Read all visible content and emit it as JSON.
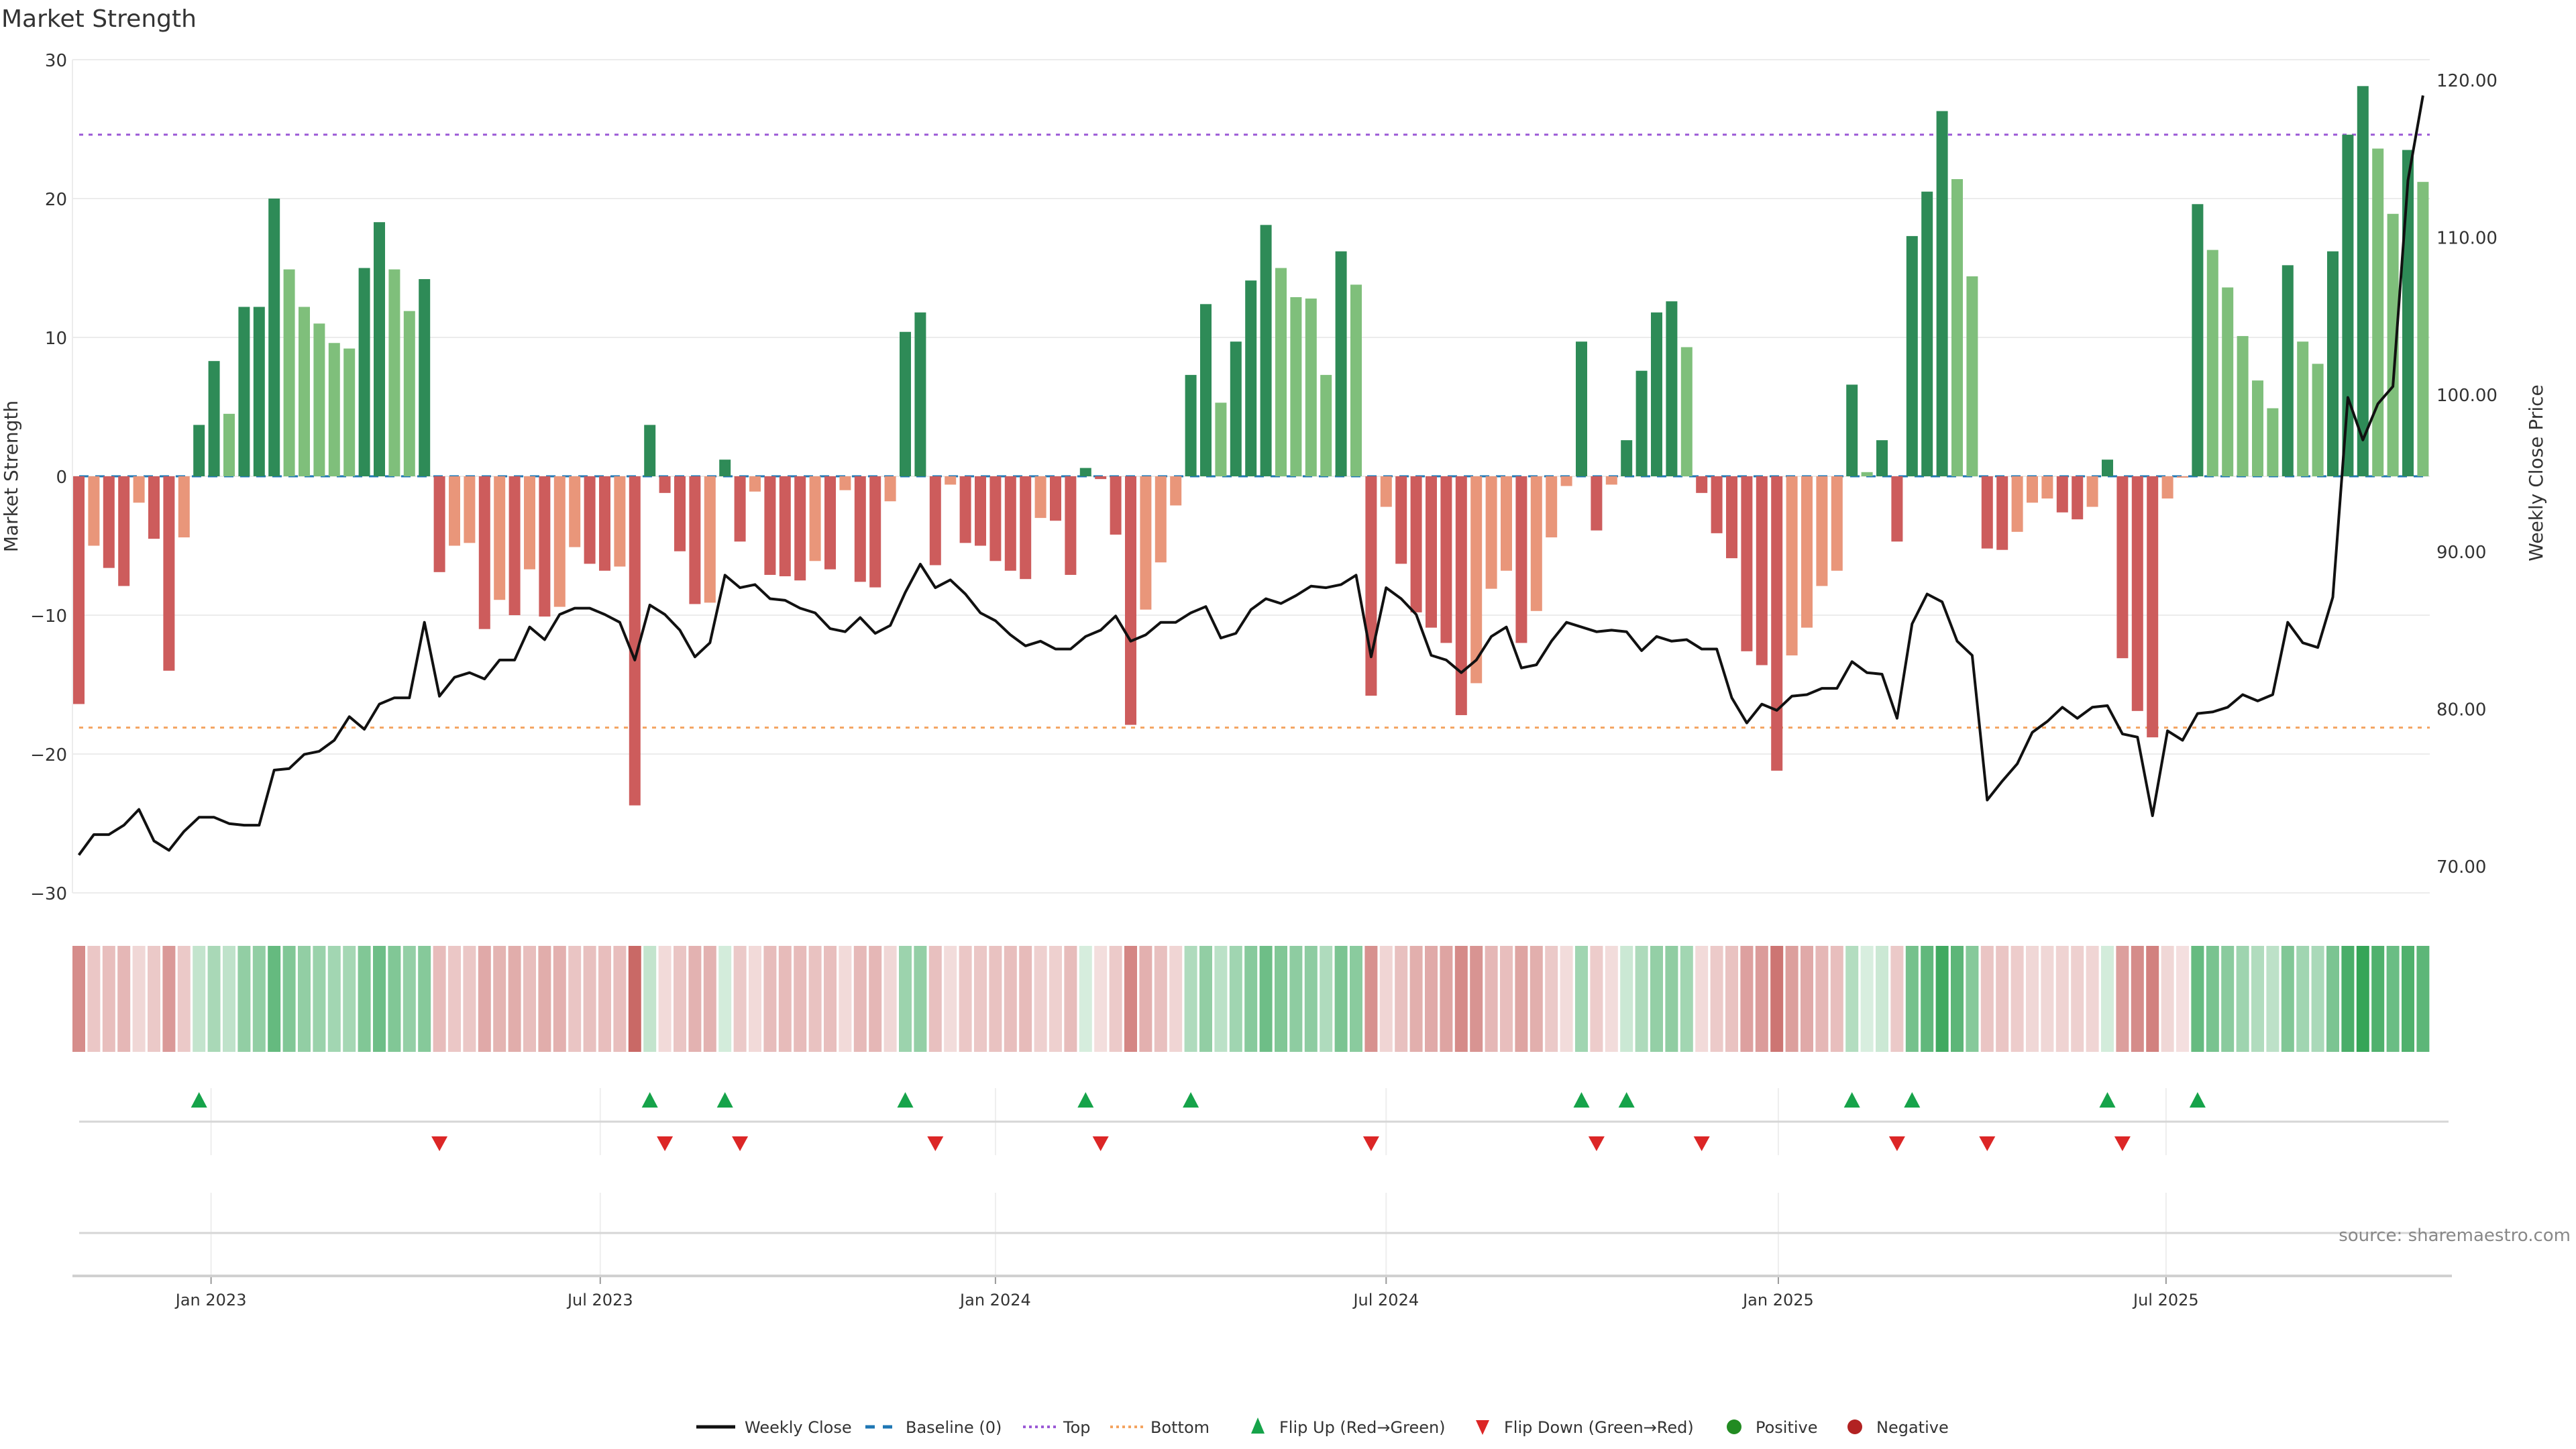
{
  "chart_data": {
    "type": "bar",
    "title": "Market Strength",
    "ylabel": "Market Strength",
    "y2label": "Weekly Close Price",
    "ylim": [
      -30,
      30
    ],
    "y2lim": [
      70,
      120
    ],
    "yticks": [
      30,
      20,
      10,
      0,
      -10,
      -20,
      -30
    ],
    "yticklabels": [
      "30",
      "20",
      "10",
      "0",
      "−10",
      "−20",
      "−30"
    ],
    "y2ticks": [
      120,
      110,
      100,
      90,
      80,
      70
    ],
    "y2ticklabels": [
      "120.00",
      "110.00",
      "100.00",
      "90.00",
      "80.00",
      "70.00"
    ],
    "xticks": [
      {
        "week": 8.8,
        "label": "Jan 2023"
      },
      {
        "week": 34.7,
        "label": "Jul 2023"
      },
      {
        "week": 61.0,
        "label": "Jan 2024"
      },
      {
        "week": 87.0,
        "label": "Jul 2024"
      },
      {
        "week": 113.1,
        "label": "Jan 2025"
      },
      {
        "week": 138.9,
        "label": "Jul 2025"
      }
    ],
    "top_level": 24.6,
    "bottom_level": -18.1,
    "baseline": 0,
    "strength": [
      -16.4,
      -5.0,
      -6.6,
      -7.9,
      -1.9,
      -4.5,
      -14.0,
      -4.4,
      3.7,
      8.3,
      4.5,
      12.2,
      12.2,
      20.0,
      14.9,
      12.2,
      11.0,
      9.6,
      9.2,
      15.0,
      18.3,
      14.9,
      11.9,
      14.2,
      -6.9,
      -5.0,
      -4.8,
      -11.0,
      -8.9,
      -10.0,
      -6.7,
      -10.1,
      -9.4,
      -5.1,
      -6.3,
      -6.8,
      -6.5,
      -23.7,
      3.7,
      -1.2,
      -5.4,
      -9.2,
      -9.1,
      1.2,
      -4.7,
      -1.1,
      -7.1,
      -7.2,
      -7.5,
      -6.1,
      -6.7,
      -1.0,
      -7.6,
      -8.0,
      -1.8,
      10.4,
      11.8,
      -6.4,
      -0.6,
      -4.8,
      -5.0,
      -6.1,
      -6.8,
      -7.4,
      -3.0,
      -3.2,
      -7.1,
      0.6,
      -0.2,
      -4.2,
      -17.9,
      -9.6,
      -6.2,
      -2.1,
      7.3,
      12.4,
      5.3,
      9.7,
      14.1,
      18.1,
      15.0,
      12.9,
      12.8,
      7.3,
      16.2,
      13.8,
      -15.8,
      -2.2,
      -6.3,
      -9.8,
      -10.9,
      -12.0,
      -17.2,
      -14.9,
      -8.1,
      -6.8,
      -12.0,
      -9.7,
      -4.4,
      -0.7,
      9.7,
      -3.9,
      -0.6,
      2.6,
      7.6,
      11.8,
      12.6,
      9.3,
      -1.2,
      -4.1,
      -5.9,
      -12.6,
      -13.6,
      -21.2,
      -12.9,
      -10.9,
      -7.9,
      -6.8,
      6.6,
      0.3,
      2.6,
      -4.7,
      17.3,
      20.5,
      26.3,
      21.4,
      14.4,
      -5.2,
      -5.3,
      -4.0,
      -1.9,
      -1.6,
      -2.6,
      -3.1,
      -2.2,
      1.2,
      -13.1,
      -16.9,
      -18.8,
      -1.6,
      -0.1,
      19.6,
      16.3,
      13.6,
      10.1,
      6.9,
      4.9,
      15.2,
      9.7,
      8.1,
      16.2,
      24.6,
      28.1,
      23.6,
      18.9,
      23.5,
      21.2
    ],
    "weekly_close": [
      70.7,
      72.0,
      72.0,
      72.6,
      73.6,
      71.6,
      71.0,
      72.2,
      73.1,
      73.1,
      72.7,
      72.6,
      72.6,
      76.1,
      76.2,
      77.1,
      77.3,
      78.0,
      79.5,
      78.7,
      80.3,
      80.7,
      80.7,
      85.5,
      80.8,
      82.0,
      82.3,
      81.9,
      83.1,
      83.1,
      85.2,
      84.4,
      86.0,
      86.4,
      86.4,
      86.0,
      85.5,
      83.1,
      86.6,
      86.0,
      85.0,
      83.3,
      84.2,
      88.5,
      87.7,
      87.9,
      87.0,
      86.9,
      86.4,
      86.1,
      85.1,
      84.9,
      85.8,
      84.8,
      85.3,
      87.4,
      89.2,
      87.7,
      88.2,
      87.3,
      86.1,
      85.6,
      84.7,
      84.0,
      84.3,
      83.8,
      83.8,
      84.6,
      85.0,
      85.9,
      84.3,
      84.7,
      85.5,
      85.5,
      86.1,
      86.5,
      84.5,
      84.8,
      86.3,
      87.0,
      86.7,
      87.2,
      87.8,
      87.7,
      87.9,
      88.5,
      83.3,
      87.7,
      87.0,
      86.0,
      83.4,
      83.1,
      82.3,
      83.1,
      84.6,
      85.2,
      82.6,
      82.8,
      84.3,
      85.5,
      85.2,
      84.9,
      85.0,
      84.9,
      83.7,
      84.6,
      84.3,
      84.4,
      83.8,
      83.8,
      80.7,
      79.1,
      80.3,
      79.9,
      80.8,
      80.9,
      81.3,
      81.3,
      83.0,
      82.3,
      82.2,
      79.4,
      85.4,
      87.3,
      86.8,
      84.3,
      83.4,
      74.2,
      75.4,
      76.5,
      78.5,
      79.2,
      80.1,
      79.4,
      80.1,
      80.2,
      78.4,
      78.2,
      73.2,
      78.6,
      78.0,
      79.7,
      79.8,
      80.1,
      80.9,
      80.5,
      80.9,
      85.5,
      84.2,
      83.9,
      87.1,
      99.8,
      97.1,
      99.4,
      100.5,
      113.6,
      119.0
    ],
    "flip_up_weeks": [
      9,
      39,
      44,
      56,
      68,
      75,
      101,
      104,
      119,
      123,
      136,
      142
    ],
    "flip_down_weeks": [
      25,
      40,
      45,
      58,
      69,
      87,
      102,
      109,
      122,
      128,
      137
    ],
    "legend": [
      {
        "key": "weekly_close",
        "label": "Weekly Close"
      },
      {
        "key": "baseline",
        "label": "Baseline (0)"
      },
      {
        "key": "top",
        "label": "Top"
      },
      {
        "key": "bottom",
        "label": "Bottom"
      },
      {
        "key": "flip_up",
        "label": "Flip Up (Red→Green)"
      },
      {
        "key": "flip_down",
        "label": "Flip Down (Green→Red)"
      },
      {
        "key": "positive",
        "label": "Positive"
      },
      {
        "key": "negative",
        "label": "Negative"
      }
    ],
    "legend_position": "bottom-center",
    "source": "source: sharemaestro.com",
    "colors": {
      "pos_strong": "#2e8b57",
      "pos_weak": "#7fbf7b",
      "neg_strong": "#cd5c5c",
      "neg_weak": "#e9967a",
      "close": "#111111",
      "baseline": "#1f77b4",
      "top": "#9b59d6",
      "bottom": "#f4a460",
      "flip_up": "#16a34a",
      "flip_down": "#dc2626",
      "positive": "#228b22",
      "negative": "#b22222",
      "heat_pos": "#31a354",
      "heat_neg": "#c0504d"
    }
  }
}
